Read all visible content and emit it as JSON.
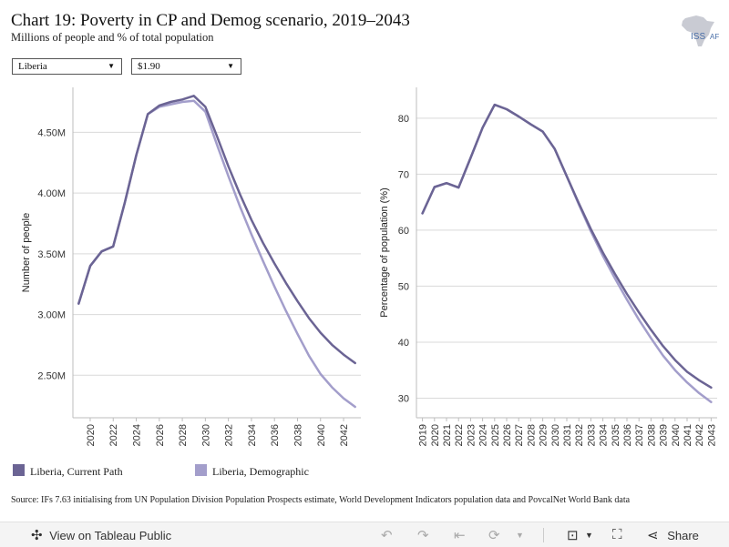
{
  "header": {
    "title": "Chart 19: Poverty in CP and Demog scenario, 2019–2043",
    "subtitle": "Millions of people and % of total population",
    "logo_text_iss": "ISS",
    "logo_text_af": "AF"
  },
  "filters": {
    "country": "Liberia",
    "poverty_line": "$1.90"
  },
  "colors": {
    "current_path": "#6b6494",
    "demographic": "#a39ecb",
    "grid": "#d9d9d9",
    "axis": "#bdbdbd"
  },
  "chart_data": [
    {
      "type": "line",
      "ylabel": "Number of people",
      "y_ticks": [
        2500000,
        3000000,
        3500000,
        4000000,
        4500000
      ],
      "y_tick_labels": [
        "2.50M",
        "3.00M",
        "3.50M",
        "4.00M",
        "4.50M"
      ],
      "ylim": [
        2150000,
        4870000
      ],
      "xlim": [
        2018.5,
        2043.5
      ],
      "x_ticks": [
        2020,
        2022,
        2024,
        2026,
        2028,
        2030,
        2032,
        2034,
        2036,
        2038,
        2040,
        2042
      ],
      "x_tick_labels": [
        "2020",
        "2022",
        "2024",
        "2026",
        "2028",
        "2030",
        "2032",
        "2034",
        "2036",
        "2038",
        "2040",
        "2042"
      ],
      "x": [
        2019,
        2020,
        2021,
        2022,
        2023,
        2024,
        2025,
        2026,
        2027,
        2028,
        2029,
        2030,
        2031,
        2032,
        2033,
        2034,
        2035,
        2036,
        2037,
        2038,
        2039,
        2040,
        2041,
        2042,
        2043
      ],
      "series": [
        {
          "name": "Liberia, Current Path",
          "color": "#6b6494",
          "values": [
            3090000,
            3400000,
            3520000,
            3560000,
            3920000,
            4310000,
            4650000,
            4720000,
            4750000,
            4770000,
            4800000,
            4710000,
            4470000,
            4220000,
            3990000,
            3780000,
            3590000,
            3420000,
            3260000,
            3110000,
            2970000,
            2850000,
            2750000,
            2670000,
            2600000
          ]
        },
        {
          "name": "Liberia, Demographic",
          "color": "#a39ecb",
          "values": [
            3090000,
            3400000,
            3520000,
            3560000,
            3920000,
            4310000,
            4650000,
            4710000,
            4730000,
            4750000,
            4760000,
            4670000,
            4400000,
            4140000,
            3890000,
            3660000,
            3440000,
            3230000,
            3030000,
            2840000,
            2660000,
            2510000,
            2400000,
            2310000,
            2240000
          ]
        }
      ]
    },
    {
      "type": "line",
      "ylabel": "Percentage of population (%)",
      "y_ticks": [
        30,
        40,
        50,
        60,
        70,
        80
      ],
      "y_tick_labels": [
        "30",
        "40",
        "50",
        "60",
        "70",
        "80"
      ],
      "ylim": [
        26.5,
        85.5
      ],
      "xlim": [
        2018.5,
        2043.5
      ],
      "x_ticks": [
        2019,
        2020,
        2021,
        2022,
        2023,
        2024,
        2025,
        2026,
        2027,
        2028,
        2029,
        2030,
        2031,
        2032,
        2033,
        2034,
        2035,
        2036,
        2037,
        2038,
        2039,
        2040,
        2041,
        2042,
        2043
      ],
      "x_tick_labels": [
        "2019",
        "2020",
        "2021",
        "2022",
        "2023",
        "2024",
        "2025",
        "2026",
        "2027",
        "2028",
        "2029",
        "2030",
        "2031",
        "2032",
        "2033",
        "2034",
        "2035",
        "2036",
        "2037",
        "2038",
        "2039",
        "2040",
        "2041",
        "2042",
        "2043"
      ],
      "x": [
        2019,
        2020,
        2021,
        2022,
        2023,
        2024,
        2025,
        2026,
        2027,
        2028,
        2029,
        2030,
        2031,
        2032,
        2033,
        2034,
        2035,
        2036,
        2037,
        2038,
        2039,
        2040,
        2041,
        2042,
        2043
      ],
      "series": [
        {
          "name": "Liberia, Current Path",
          "color": "#6b6494",
          "values": [
            63.0,
            67.7,
            68.4,
            67.6,
            72.9,
            78.3,
            82.4,
            81.6,
            80.3,
            78.9,
            77.6,
            74.5,
            69.6,
            64.8,
            60.2,
            56.0,
            52.2,
            48.6,
            45.3,
            42.2,
            39.3,
            36.8,
            34.7,
            33.2,
            31.9
          ]
        },
        {
          "name": "Liberia, Demographic",
          "color": "#a39ecb",
          "values": [
            63.0,
            67.7,
            68.4,
            67.6,
            72.9,
            78.3,
            82.4,
            81.6,
            80.3,
            78.9,
            77.6,
            74.5,
            69.6,
            64.6,
            59.8,
            55.4,
            51.4,
            47.6,
            44.0,
            40.7,
            37.6,
            35.0,
            32.8,
            30.9,
            29.3
          ]
        }
      ]
    }
  ],
  "legend": [
    {
      "label": "Liberia, Current Path",
      "color": "#6b6494"
    },
    {
      "label": "Liberia, Demographic",
      "color": "#a39ecb"
    }
  ],
  "source": "Source: IFs 7.63 initialising from UN Population Division Population Prospects estimate, World Development Indicators population data and PovcalNet World Bank data",
  "toolbar": {
    "view_label": "View on Tableau Public",
    "share_label": "Share",
    "icons": [
      "tableau-logo-icon",
      "undo-icon",
      "redo-icon",
      "revert-icon",
      "refresh-icon",
      "download-icon",
      "fullscreen-icon",
      "share-icon"
    ]
  }
}
